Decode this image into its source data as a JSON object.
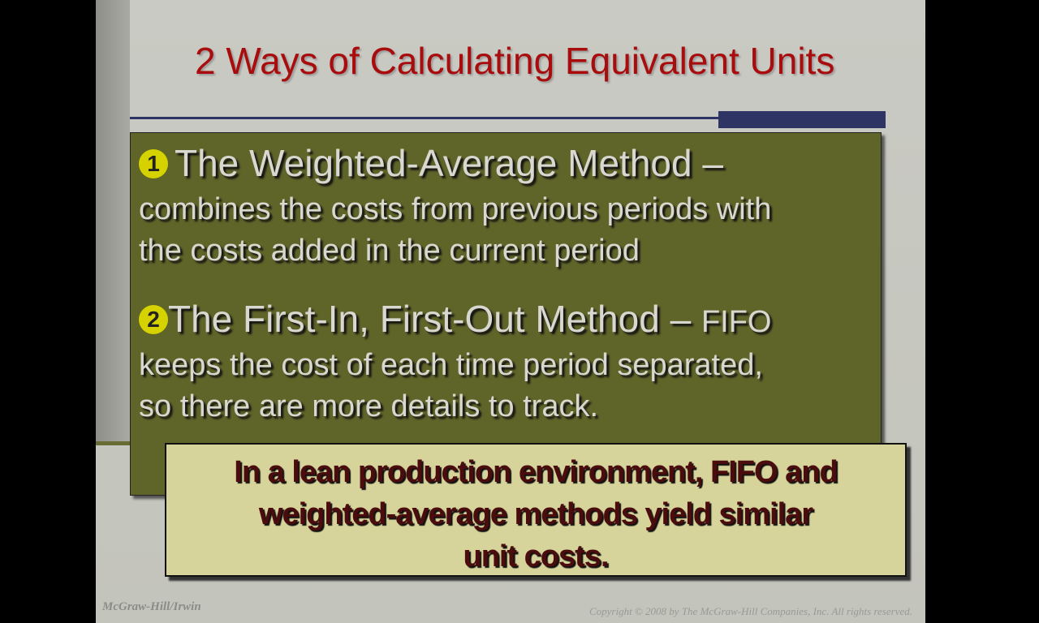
{
  "slide": {
    "title": "2 Ways of Calculating Equivalent Units",
    "items": [
      {
        "number": "1",
        "heading": "The Weighted-Average Method –",
        "lines": [
          "combines the costs from previous periods with",
          "the costs added in the current period"
        ]
      },
      {
        "number": "2",
        "heading": "The First-In, First-Out Method –",
        "heading_suffix": "FIFO",
        "lines": [
          "keeps the cost of each time period separated,",
          "so there are more details to track."
        ]
      }
    ],
    "note_lines": [
      "In a lean production environment, FIFO and",
      "weighted-average methods yield similar",
      "unit costs."
    ],
    "footer_left": "McGraw-Hill/Irwin",
    "footer_right": "Copyright © 2008 by The McGraw-Hill Companies, Inc. All rights reserved."
  },
  "colors": {
    "title": "#a80c0c",
    "content_box": "#5f6429",
    "note_box": "#d6d49b",
    "accent_bar": "#2e3463",
    "bullet": "#d5d200"
  }
}
